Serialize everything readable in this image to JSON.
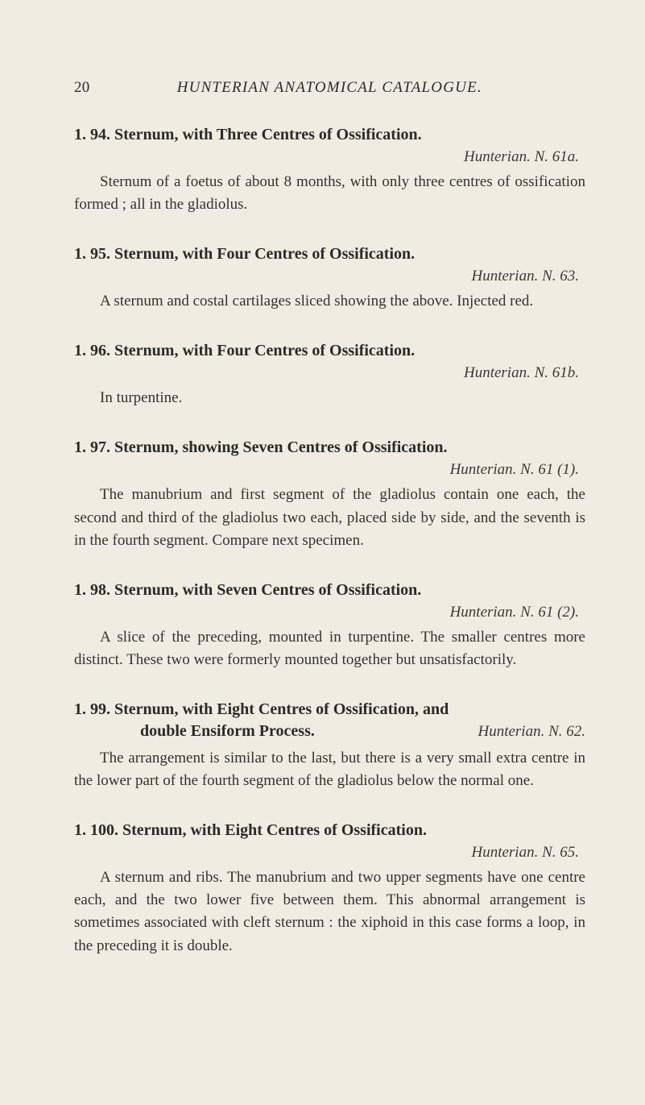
{
  "page_number": "20",
  "running_title": "HUNTERIAN ANATOMICAL CATALOGUE.",
  "entries": [
    {
      "heading": "1. 94. Sternum, with Three Centres of Ossification.",
      "ref": "Hunterian. N. 61a.",
      "desc": "Sternum of a foetus of about 8 months, with only three centres of ossification formed ; all in the gladiolus."
    },
    {
      "heading": "1. 95. Sternum, with Four Centres of Ossification.",
      "ref": "Hunterian. N. 63.",
      "desc": "A sternum and costal cartilages sliced showing the above. Injected red."
    },
    {
      "heading": "1. 96. Sternum, with Four Centres of Ossification.",
      "ref": "Hunterian. N. 61b.",
      "desc": "In turpentine."
    },
    {
      "heading": "1. 97. Sternum, showing Seven Centres of Ossification.",
      "ref": "Hunterian. N. 61 (1).",
      "desc": "The manubrium and first segment of the gladiolus contain one each, the second and third of the gladiolus two each, placed side by side, and the seventh is in the fourth segment. Compare next specimen."
    },
    {
      "heading": "1. 98. Sternum, with Seven Centres of Ossification.",
      "ref": "Hunterian. N. 61 (2).",
      "desc": "A slice of the preceding, mounted in turpentine. The smaller centres more distinct. These two were formerly mounted together but unsatisfactorily."
    },
    {
      "heading_line1": "1. 99. Sternum, with Eight Centres of Ossification, and",
      "heading_line2": "double Ensiform Process.",
      "ref": "Hunterian. N. 62.",
      "desc": "The arrangement is similar to the last, but there is a very small extra centre in the lower part of the fourth segment of the gladiolus below the normal one."
    },
    {
      "heading": "1. 100. Sternum, with Eight Centres of Ossification.",
      "ref": "Hunterian. N. 65.",
      "desc": "A sternum and ribs. The manubrium and two upper segments have one centre each, and the two lower five between them. This abnormal arrangement is sometimes associated with cleft sternum : the xiphoid in this case forms a loop, in the preceding it is double."
    }
  ]
}
